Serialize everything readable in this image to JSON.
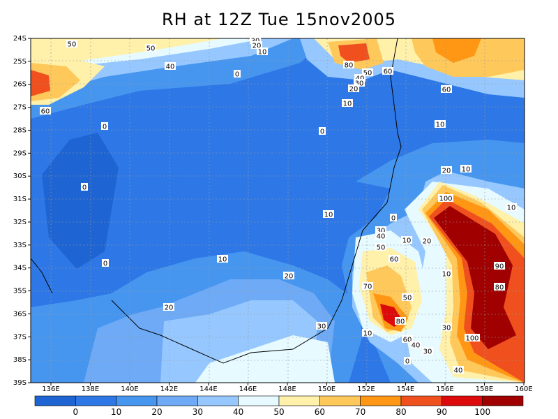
{
  "title": "RH at 12Z Tue 15nov2005",
  "lat_labels": [
    "24S",
    "25S",
    "26S",
    "27S",
    "28S",
    "29S",
    "30S",
    "31S",
    "32S",
    "33S",
    "34S",
    "35S",
    "36S",
    "37S",
    "38S",
    "39S"
  ],
  "lon_labels": [
    "136E",
    "138E",
    "140E",
    "142E",
    "144E",
    "146E",
    "148E",
    "150E",
    "152E",
    "154E",
    "156E",
    "158E",
    "160E"
  ],
  "colorbar": {
    "ticks": [
      "0",
      "10",
      "20",
      "30",
      "40",
      "50",
      "60",
      "70",
      "80",
      "90",
      "100"
    ],
    "colors": [
      "#1e64d2",
      "#2d78e6",
      "#4696f0",
      "#6eaaf5",
      "#96c8ff",
      "#e6faff",
      "#fff0aa",
      "#ffc85a",
      "#ff9614",
      "#f0501e",
      "#dc0a0a",
      "#a00000"
    ]
  },
  "contour_labels": [
    {
      "text": "50"
    },
    {
      "text": "50"
    },
    {
      "text": "40"
    },
    {
      "text": "60"
    },
    {
      "text": "30"
    },
    {
      "text": "20"
    },
    {
      "text": "10"
    },
    {
      "text": "0"
    },
    {
      "text": "80"
    },
    {
      "text": "50"
    },
    {
      "text": "60"
    },
    {
      "text": "40"
    },
    {
      "text": "30"
    },
    {
      "text": "20"
    },
    {
      "text": "60"
    },
    {
      "text": "10"
    },
    {
      "text": "0"
    },
    {
      "text": "0"
    },
    {
      "text": "10"
    },
    {
      "text": "0"
    },
    {
      "text": "20"
    },
    {
      "text": "10"
    },
    {
      "text": "10"
    },
    {
      "text": "100"
    },
    {
      "text": "10"
    },
    {
      "text": "0"
    },
    {
      "text": "30"
    },
    {
      "text": "40"
    },
    {
      "text": "50"
    },
    {
      "text": "10"
    },
    {
      "text": "20"
    },
    {
      "text": "60"
    },
    {
      "text": "0"
    },
    {
      "text": "10"
    },
    {
      "text": "10"
    },
    {
      "text": "20"
    },
    {
      "text": "70"
    },
    {
      "text": "50"
    },
    {
      "text": "90"
    },
    {
      "text": "80"
    },
    {
      "text": "80"
    },
    {
      "text": "20"
    },
    {
      "text": "30"
    },
    {
      "text": "10"
    },
    {
      "text": "60"
    },
    {
      "text": "40"
    },
    {
      "text": "30"
    },
    {
      "text": "100"
    },
    {
      "text": "30"
    },
    {
      "text": "40"
    },
    {
      "text": "0"
    }
  ]
}
